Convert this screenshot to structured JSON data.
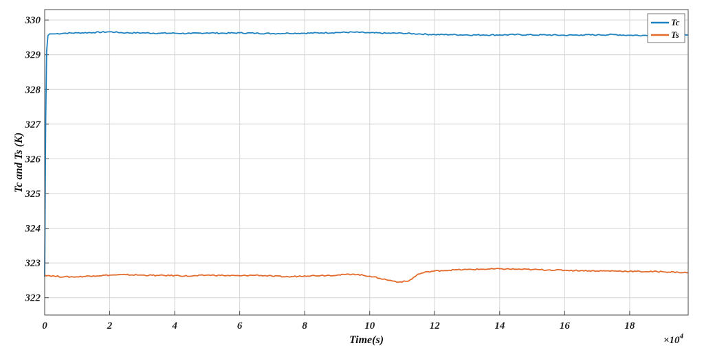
{
  "chart_data": {
    "type": "line",
    "title": "",
    "xlabel": "Time(s)",
    "ylabel": "Tc and Ts (K)",
    "x_multiplier_label": "×10",
    "x_multiplier_exponent": "4",
    "xlim": [
      0,
      19.8
    ],
    "ylim": [
      321.5,
      330.3
    ],
    "x_ticks": [
      0,
      2,
      4,
      6,
      8,
      10,
      12,
      14,
      16,
      18
    ],
    "y_ticks": [
      322,
      323,
      324,
      325,
      326,
      327,
      328,
      329,
      330
    ],
    "grid": true,
    "legend_position": "top-right",
    "series": [
      {
        "name": "Tc",
        "color": "#1f82c0",
        "x": [
          0,
          0.03,
          0.06,
          0.1,
          0.15,
          0.3,
          0.6,
          1.0,
          1.5,
          2.0,
          2.5,
          3.0,
          3.5,
          4.0,
          4.5,
          5.0,
          5.5,
          6.0,
          6.5,
          7.0,
          7.5,
          8.0,
          8.5,
          9.0,
          9.5,
          10.0,
          10.5,
          11.0,
          11.5,
          12.0,
          12.5,
          13.0,
          13.5,
          14.0,
          14.5,
          15.0,
          15.5,
          16.0,
          16.5,
          17.0,
          17.5,
          18.0,
          18.5,
          19.0,
          19.5,
          19.8
        ],
        "y": [
          322.6,
          327.0,
          329.1,
          329.55,
          329.6,
          329.6,
          329.62,
          329.63,
          329.64,
          329.66,
          329.63,
          329.63,
          329.62,
          329.62,
          329.61,
          329.63,
          329.62,
          329.63,
          329.62,
          329.61,
          329.62,
          329.62,
          329.63,
          329.64,
          329.65,
          329.63,
          329.62,
          329.62,
          329.6,
          329.58,
          329.58,
          329.57,
          329.57,
          329.57,
          329.58,
          329.57,
          329.57,
          329.56,
          329.57,
          329.57,
          329.58,
          329.56,
          329.56,
          329.57,
          329.57,
          329.57
        ]
      },
      {
        "name": "Ts",
        "color": "#e36a2a",
        "x": [
          0,
          0.3,
          0.6,
          1.0,
          1.5,
          2.0,
          2.5,
          3.0,
          3.5,
          4.0,
          4.5,
          5.0,
          5.5,
          6.0,
          6.5,
          7.0,
          7.5,
          8.0,
          8.5,
          9.0,
          9.5,
          10.0,
          10.3,
          10.6,
          10.9,
          11.2,
          11.5,
          11.8,
          12.2,
          12.6,
          13.0,
          13.5,
          14.0,
          14.5,
          15.0,
          15.5,
          16.0,
          16.5,
          17.0,
          17.5,
          18.0,
          18.5,
          19.0,
          19.5,
          19.8
        ],
        "y": [
          322.65,
          322.62,
          322.6,
          322.6,
          322.63,
          322.65,
          322.66,
          322.65,
          322.64,
          322.64,
          322.62,
          322.65,
          322.64,
          322.63,
          322.65,
          322.62,
          322.6,
          322.63,
          322.64,
          322.65,
          322.68,
          322.62,
          322.56,
          322.5,
          322.45,
          322.48,
          322.68,
          322.75,
          322.78,
          322.8,
          322.81,
          322.82,
          322.83,
          322.82,
          322.81,
          322.8,
          322.79,
          322.78,
          322.77,
          322.77,
          322.76,
          322.75,
          322.75,
          322.73,
          322.72
        ]
      }
    ]
  }
}
